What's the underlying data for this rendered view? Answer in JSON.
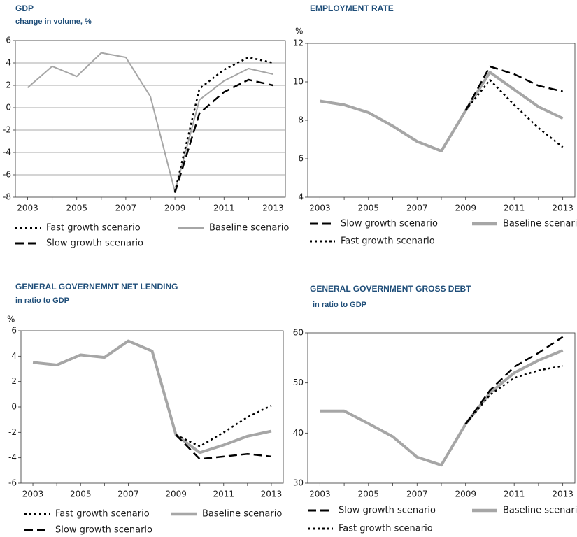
{
  "chart_data": [
    {
      "type": "line",
      "title": "GDP",
      "subtitle": "change in volume, %",
      "x": [
        2003,
        2004,
        2005,
        2006,
        2007,
        2008,
        2009,
        2010,
        2011,
        2012,
        2013
      ],
      "xlim": [
        2002.5,
        2013.5
      ],
      "xticks": [
        2003,
        2005,
        2007,
        2009,
        2011,
        2013
      ],
      "ylim": [
        -8,
        6
      ],
      "yticks": [
        -8,
        -6,
        -4,
        -2,
        0,
        2,
        4,
        6
      ],
      "grid": true,
      "series": [
        {
          "name": "Fast growth scenario",
          "color": "#000000",
          "dash": "dotted",
          "values": [
            null,
            null,
            null,
            null,
            null,
            null,
            -7.5,
            1.7,
            3.4,
            4.5,
            4.0
          ]
        },
        {
          "name": "Baseline scenario",
          "color": "#a6a6a6",
          "dash": "solid",
          "values": [
            1.8,
            3.7,
            2.8,
            4.9,
            4.5,
            1.0,
            -7.5,
            0.7,
            2.4,
            3.5,
            3.0
          ]
        },
        {
          "name": "Slow growth scenario",
          "color": "#000000",
          "dash": "dashed",
          "values": [
            null,
            null,
            null,
            null,
            null,
            null,
            -7.6,
            -0.5,
            1.4,
            2.5,
            2.0
          ]
        }
      ]
    },
    {
      "type": "line",
      "title": "EMPLOYMENT RATE",
      "y_unit": "%",
      "x": [
        2003,
        2004,
        2005,
        2006,
        2007,
        2008,
        2009,
        2010,
        2011,
        2012,
        2013
      ],
      "xlim": [
        2002.5,
        2013.5
      ],
      "xticks": [
        2003,
        2005,
        2007,
        2009,
        2011,
        2013
      ],
      "ylim": [
        4,
        12
      ],
      "yticks": [
        4,
        6,
        8,
        10,
        12
      ],
      "grid": false,
      "series": [
        {
          "name": "Slow growth scenario",
          "color": "#000000",
          "dash": "dashed",
          "values": [
            null,
            null,
            null,
            null,
            null,
            null,
            8.5,
            10.8,
            10.4,
            9.8,
            9.5
          ]
        },
        {
          "name": "Baseline scenario",
          "color": "#a6a6a6",
          "dash": "thick",
          "values": [
            9.0,
            8.8,
            8.4,
            7.7,
            6.9,
            6.4,
            8.5,
            10.5,
            9.6,
            8.7,
            8.1
          ]
        },
        {
          "name": "Fast growth scenario",
          "color": "#000000",
          "dash": "dotted",
          "values": [
            null,
            null,
            null,
            null,
            null,
            null,
            8.5,
            10.1,
            8.8,
            7.6,
            6.6
          ]
        }
      ]
    },
    {
      "type": "line",
      "title": "GENERAL GOVERNEMNT NET LENDING",
      "subtitle": "in ratio to GDP",
      "y_unit": "%",
      "x": [
        2003,
        2004,
        2005,
        2006,
        2007,
        2008,
        2009,
        2010,
        2011,
        2012,
        2013
      ],
      "xlim": [
        2002.5,
        2013.5
      ],
      "xticks": [
        2003,
        2005,
        2007,
        2009,
        2011,
        2013
      ],
      "ylim": [
        -6,
        6
      ],
      "yticks": [
        -6,
        -4,
        -2,
        0,
        2,
        4,
        6
      ],
      "grid": false,
      "series": [
        {
          "name": "Fast growth scenario",
          "color": "#000000",
          "dash": "dotted",
          "values": [
            null,
            null,
            null,
            null,
            null,
            null,
            -2.2,
            -3.1,
            -2.0,
            -0.8,
            0.1
          ]
        },
        {
          "name": "Baseline scenario",
          "color": "#a6a6a6",
          "dash": "thick",
          "values": [
            3.5,
            3.3,
            4.1,
            3.9,
            5.2,
            4.4,
            -2.2,
            -3.6,
            -3.0,
            -2.3,
            -1.9
          ]
        },
        {
          "name": "Slow growth scenario",
          "color": "#000000",
          "dash": "dashed",
          "values": [
            null,
            null,
            null,
            null,
            null,
            null,
            -2.2,
            -4.1,
            -3.9,
            -3.7,
            -3.9
          ]
        }
      ]
    },
    {
      "type": "line",
      "title": "GENERAL GOVERNMENT GROSS DEBT",
      "subtitle": "in ratio to GDP",
      "x": [
        2003,
        2004,
        2005,
        2006,
        2007,
        2008,
        2009,
        2010,
        2011,
        2012,
        2013
      ],
      "xlim": [
        2002.5,
        2013.5
      ],
      "xticks": [
        2003,
        2005,
        2007,
        2009,
        2011,
        2013
      ],
      "ylim": [
        30,
        60
      ],
      "yticks": [
        30,
        40,
        50,
        60
      ],
      "grid": false,
      "series": [
        {
          "name": "Slow growth scenario",
          "color": "#000000",
          "dash": "dashed",
          "values": [
            null,
            null,
            null,
            null,
            null,
            null,
            41.8,
            48.5,
            53.2,
            56.0,
            59.2
          ]
        },
        {
          "name": "Baseline scenario",
          "color": "#a6a6a6",
          "dash": "thick",
          "values": [
            44.4,
            44.4,
            41.9,
            39.3,
            35.2,
            33.6,
            41.8,
            48.0,
            52.0,
            54.5,
            56.5
          ]
        },
        {
          "name": "Fast growth scenario",
          "color": "#000000",
          "dash": "dotted",
          "values": [
            null,
            null,
            null,
            null,
            null,
            null,
            41.8,
            47.6,
            51.0,
            52.5,
            53.4
          ]
        }
      ]
    }
  ]
}
